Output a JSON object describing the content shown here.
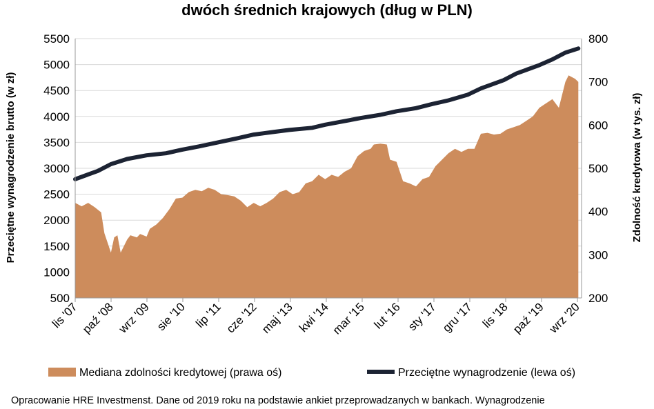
{
  "chart_data": {
    "type": "line+area",
    "title": "dwóch średnich krajowych (dług w PLN)",
    "left_axis": {
      "label": "Przeciętne wynagrodzenie brutto (w zł)",
      "min": 500,
      "max": 5500,
      "ticks": [
        "500",
        "1000",
        "1500",
        "2000",
        "2500",
        "3000",
        "3500",
        "4000",
        "4500",
        "5000",
        "5500"
      ]
    },
    "right_axis": {
      "label": "Zdolność kredytowa (w tys. zł)",
      "min": 200,
      "max": 800,
      "ticks": [
        "200",
        "300",
        "400",
        "500",
        "600",
        "700",
        "800"
      ]
    },
    "x_ticks": [
      "lis '07",
      "paź '08",
      "wrz '09",
      "sie '10",
      "lip '11",
      "cze '12",
      "maj '13",
      "kwi '14",
      "mar '15",
      "lut '16",
      "sty '17",
      "gru '17",
      "lis '18",
      "paź '19",
      "wrz '20"
    ],
    "grid": "horizontal",
    "legend_position": "bottom",
    "series": [
      {
        "name": "Mediana zdolności kredytowej (prawa oś)",
        "type": "area",
        "axis": "right",
        "color": "#cd8c5c",
        "points": [
          [
            "2007-11",
            420
          ],
          [
            "2008-01",
            412
          ],
          [
            "2008-03",
            420
          ],
          [
            "2008-05",
            410
          ],
          [
            "2008-07",
            398
          ],
          [
            "2008-08",
            350
          ],
          [
            "2008-10",
            305
          ],
          [
            "2008-11",
            340
          ],
          [
            "2008-12",
            345
          ],
          [
            "2009-01",
            305
          ],
          [
            "2009-03",
            335
          ],
          [
            "2009-04",
            345
          ],
          [
            "2009-06",
            340
          ],
          [
            "2009-07",
            348
          ],
          [
            "2009-09",
            342
          ],
          [
            "2009-10",
            360
          ],
          [
            "2009-12",
            370
          ],
          [
            "2010-02",
            385
          ],
          [
            "2010-04",
            405
          ],
          [
            "2010-06",
            430
          ],
          [
            "2010-08",
            432
          ],
          [
            "2010-10",
            445
          ],
          [
            "2010-12",
            450
          ],
          [
            "2011-02",
            447
          ],
          [
            "2011-04",
            455
          ],
          [
            "2011-06",
            450
          ],
          [
            "2011-08",
            440
          ],
          [
            "2011-10",
            438
          ],
          [
            "2011-12",
            435
          ],
          [
            "2012-02",
            425
          ],
          [
            "2012-04",
            410
          ],
          [
            "2012-06",
            420
          ],
          [
            "2012-08",
            412
          ],
          [
            "2012-10",
            420
          ],
          [
            "2012-12",
            430
          ],
          [
            "2013-02",
            445
          ],
          [
            "2013-04",
            450
          ],
          [
            "2013-06",
            440
          ],
          [
            "2013-08",
            445
          ],
          [
            "2013-10",
            465
          ],
          [
            "2013-12",
            470
          ],
          [
            "2014-02",
            485
          ],
          [
            "2014-04",
            475
          ],
          [
            "2014-06",
            485
          ],
          [
            "2014-08",
            480
          ],
          [
            "2014-10",
            492
          ],
          [
            "2014-12",
            500
          ],
          [
            "2015-02",
            528
          ],
          [
            "2015-04",
            540
          ],
          [
            "2015-06",
            545
          ],
          [
            "2015-07",
            555
          ],
          [
            "2015-09",
            557
          ],
          [
            "2015-11",
            555
          ],
          [
            "2015-12",
            520
          ],
          [
            "2016-02",
            515
          ],
          [
            "2016-04",
            470
          ],
          [
            "2016-06",
            465
          ],
          [
            "2016-08",
            458
          ],
          [
            "2016-10",
            475
          ],
          [
            "2016-12",
            480
          ],
          [
            "2017-02",
            505
          ],
          [
            "2017-04",
            520
          ],
          [
            "2017-06",
            535
          ],
          [
            "2017-08",
            545
          ],
          [
            "2017-10",
            538
          ],
          [
            "2017-12",
            545
          ],
          [
            "2018-02",
            545
          ],
          [
            "2018-04",
            580
          ],
          [
            "2018-06",
            582
          ],
          [
            "2018-08",
            578
          ],
          [
            "2018-10",
            580
          ],
          [
            "2018-12",
            590
          ],
          [
            "2019-02",
            595
          ],
          [
            "2019-04",
            600
          ],
          [
            "2019-06",
            610
          ],
          [
            "2019-08",
            620
          ],
          [
            "2019-10",
            640
          ],
          [
            "2019-12",
            650
          ],
          [
            "2020-02",
            660
          ],
          [
            "2020-04",
            640
          ],
          [
            "2020-06",
            700
          ],
          [
            "2020-07",
            715
          ],
          [
            "2020-09",
            707
          ],
          [
            "2020-10",
            700
          ]
        ]
      },
      {
        "name": "Przeciętne wynagrodzenie (lewa oś)",
        "type": "line",
        "axis": "left",
        "color": "#1c2333",
        "points": [
          [
            "2007-11",
            2790
          ],
          [
            "2008-06",
            2950
          ],
          [
            "2008-10",
            3080
          ],
          [
            "2009-03",
            3180
          ],
          [
            "2009-09",
            3250
          ],
          [
            "2010-03",
            3290
          ],
          [
            "2010-08",
            3360
          ],
          [
            "2011-01",
            3420
          ],
          [
            "2011-07",
            3500
          ],
          [
            "2012-01",
            3580
          ],
          [
            "2012-06",
            3650
          ],
          [
            "2012-12",
            3700
          ],
          [
            "2013-05",
            3740
          ],
          [
            "2013-12",
            3780
          ],
          [
            "2014-04",
            3840
          ],
          [
            "2014-10",
            3910
          ],
          [
            "2015-03",
            3970
          ],
          [
            "2015-09",
            4030
          ],
          [
            "2016-02",
            4100
          ],
          [
            "2016-08",
            4160
          ],
          [
            "2017-01",
            4240
          ],
          [
            "2017-06",
            4310
          ],
          [
            "2017-12",
            4420
          ],
          [
            "2018-04",
            4540
          ],
          [
            "2018-11",
            4700
          ],
          [
            "2019-03",
            4830
          ],
          [
            "2019-10",
            4990
          ],
          [
            "2020-02",
            5100
          ],
          [
            "2020-06",
            5230
          ],
          [
            "2020-10",
            5310
          ]
        ]
      }
    ]
  },
  "footnote": "Opracowanie HRE Investmenst. Dane od 2019 roku na podstawie ankiet przeprowadzanych w bankach. Wynagrodzenie"
}
